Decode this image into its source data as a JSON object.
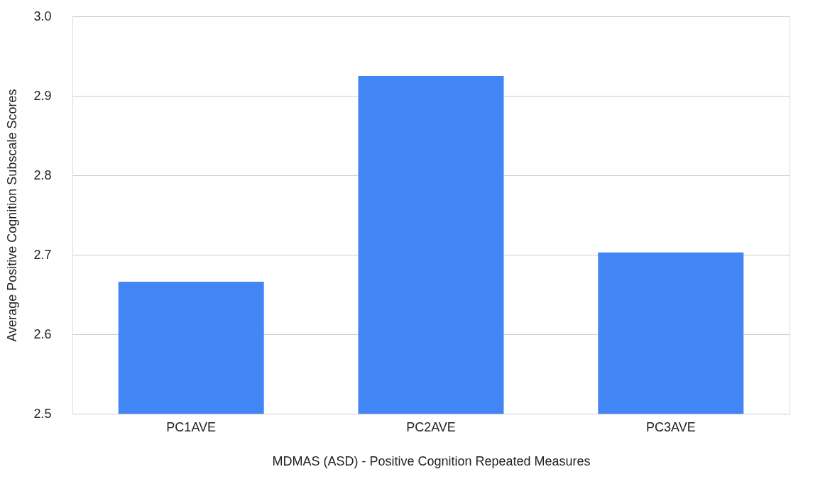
{
  "chart_data": {
    "type": "bar",
    "xlabel": "MDMAS (ASD) - Positive Cognition Repeated Measures",
    "ylabel": "Average Positive Cognition Subscale Scores",
    "categories": [
      "PC1AVE",
      "PC2AVE",
      "PC3AVE"
    ],
    "values": [
      2.666,
      2.925,
      2.703
    ],
    "color": "#4285f4",
    "ylim": [
      2.5,
      3.0
    ],
    "yticks": [
      2.5,
      2.6,
      2.7,
      2.8,
      2.9,
      {
        "value": 3,
        "label": "3.0"
      }
    ],
    "grid": "y",
    "legend": false
  }
}
